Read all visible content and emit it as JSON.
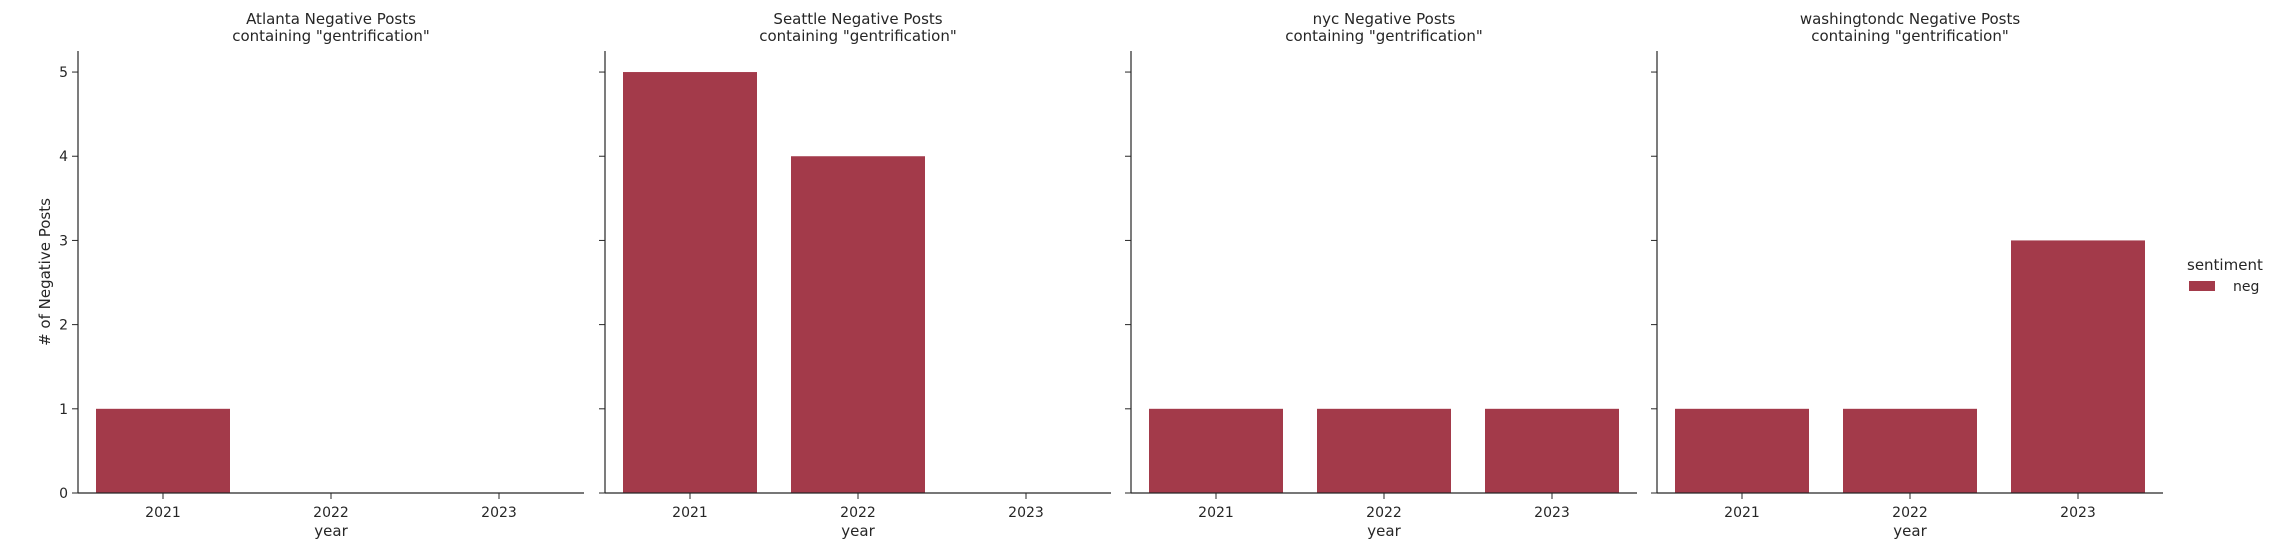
{
  "chart_data": {
    "type": "bar",
    "layout": "facet-grid",
    "categories": [
      "2021",
      "2022",
      "2023"
    ],
    "xlabel": "year",
    "ylabel": "# of Negative Posts",
    "ylim": [
      0,
      5.25
    ],
    "yticks": [
      0,
      1,
      2,
      3,
      4,
      5
    ],
    "grid": false,
    "legend": {
      "title": "sentiment",
      "entries": [
        {
          "label": "neg",
          "color": "#a33a4a"
        }
      ],
      "placement": "right"
    },
    "facets": [
      {
        "title_line1": "Atlanta Negative Posts",
        "title_line2": "containing \"gentrification\"",
        "values": [
          1,
          0,
          0
        ]
      },
      {
        "title_line1": "Seattle Negative Posts",
        "title_line2": "containing \"gentrification\"",
        "values": [
          5,
          4,
          0
        ]
      },
      {
        "title_line1": "nyc Negative Posts",
        "title_line2": "containing \"gentrification\"",
        "values": [
          1,
          1,
          1
        ]
      },
      {
        "title_line1": "washingtondc Negative Posts",
        "title_line2": "containing \"gentrification\"",
        "values": [
          1,
          1,
          3
        ]
      }
    ]
  }
}
